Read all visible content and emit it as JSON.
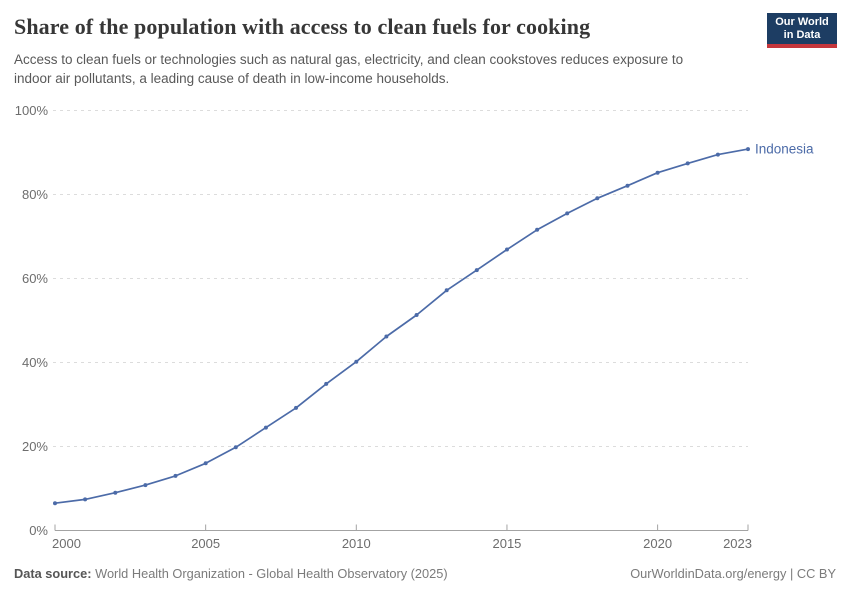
{
  "header": {
    "title": "Share of the population with access to clean fuels for cooking",
    "subtitle": "Access to clean fuels or technologies such as natural gas, electricity, and clean cookstoves reduces exposure to indoor air pollutants, a leading cause of death in low-income households.",
    "logo": {
      "line1": "Our World",
      "line2": "in Data"
    }
  },
  "footer": {
    "source_label": "Data source:",
    "source_value": "World Health Organization - Global Health Observatory (2025)",
    "credit": "OurWorldinData.org/energy | CC BY"
  },
  "colors": {
    "series_blue": "#4c6ba8",
    "logo_navy": "#1d3d63",
    "logo_red": "#c5363c",
    "gridline": "#dcdcdc",
    "axis": "#a3a3a3",
    "tick_label": "#6d6d6d"
  },
  "chart_data": {
    "type": "line",
    "title": "Share of the population with access to clean fuels for cooking",
    "xlabel": "",
    "ylabel": "",
    "xlim": [
      2000,
      2023
    ],
    "ylim": [
      0,
      100
    ],
    "x_ticks": [
      2000,
      2005,
      2010,
      2015,
      2020,
      2023
    ],
    "y_ticks": [
      0,
      20,
      40,
      60,
      80,
      100
    ],
    "y_tick_suffix": "%",
    "grid": "horizontal-dashed",
    "legend_position": "end-of-line-label",
    "series": [
      {
        "name": "Indonesia",
        "color": "#4c6ba8",
        "x": [
          2000,
          2001,
          2002,
          2003,
          2004,
          2005,
          2006,
          2007,
          2008,
          2009,
          2010,
          2011,
          2012,
          2013,
          2014,
          2015,
          2016,
          2017,
          2018,
          2019,
          2020,
          2021,
          2022,
          2023
        ],
        "values": [
          6.5,
          7.4,
          9.0,
          10.8,
          13.0,
          16.0,
          19.8,
          24.5,
          29.2,
          34.9,
          40.2,
          46.2,
          51.3,
          57.2,
          62.0,
          66.9,
          71.6,
          75.5,
          79.1,
          82.1,
          85.2,
          87.4,
          89.5,
          90.8
        ]
      }
    ]
  }
}
